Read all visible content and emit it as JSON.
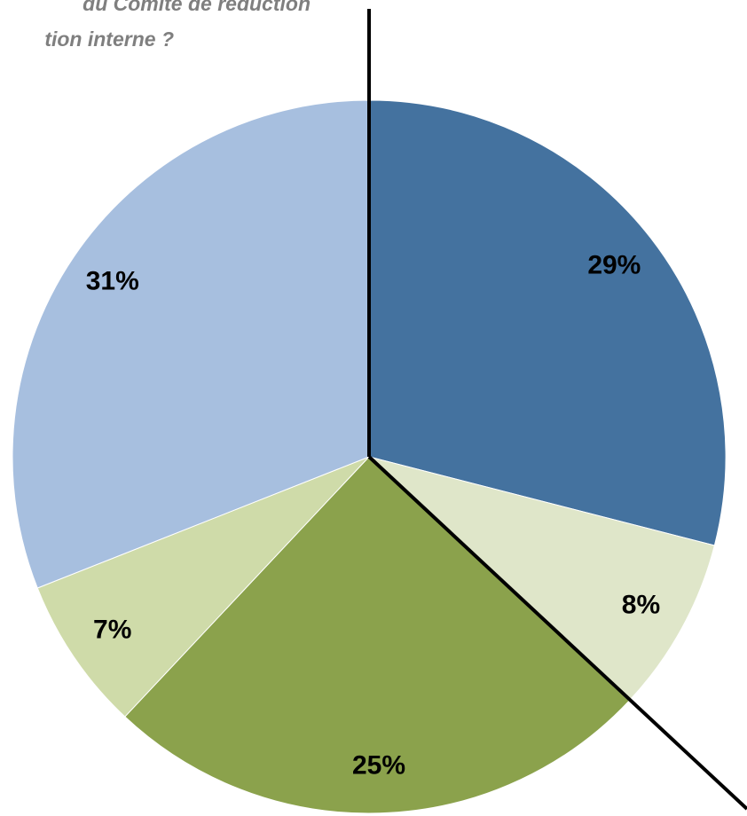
{
  "chart_data": {
    "type": "pie",
    "title": [
      "du Comité de réduction",
      "tion interne ?"
    ],
    "values": [
      29,
      8,
      25,
      7,
      31
    ],
    "value_labels": [
      "29%",
      "8%",
      "25%",
      "7%",
      "31%"
    ],
    "colors": [
      "#44729f",
      "#dfe6c9",
      "#8ba24c",
      "#cfdba9",
      "#a7bfdf"
    ]
  }
}
